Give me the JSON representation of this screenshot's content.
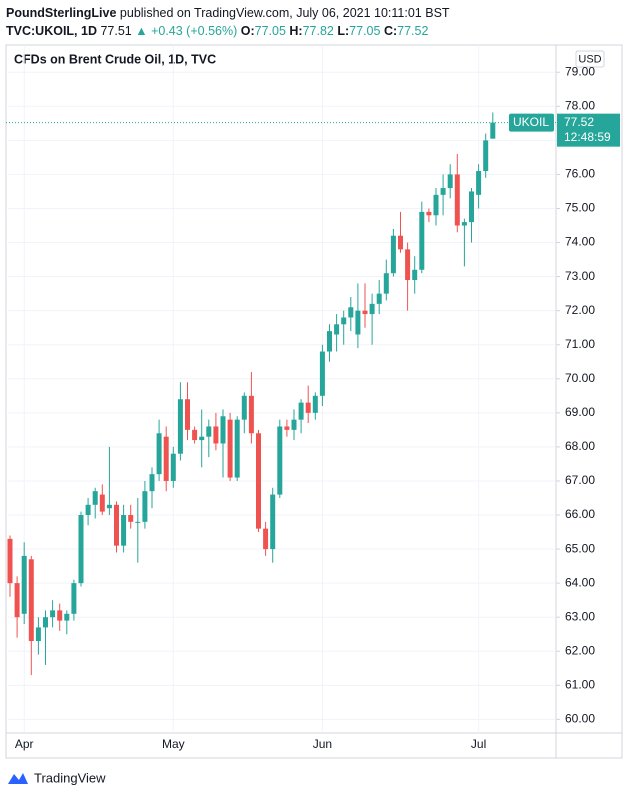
{
  "header": {
    "publisher": "PoundSterlingLive",
    "published": "published on TradingView.com, July 06, 2021 10:11:01 BST",
    "symbol": "TVC:UKOIL, 1D",
    "last": "77.51",
    "change": "▲ +0.43 (+0.56%)",
    "ohlc": [
      {
        "label": "O:",
        "value": "77.05"
      },
      {
        "label": "H:",
        "value": "77.82"
      },
      {
        "label": "L:",
        "value": "77.05"
      },
      {
        "label": "C:",
        "value": "77.52"
      }
    ]
  },
  "chart_data": {
    "type": "candlestick",
    "title": "CFDs on Brent Crude Oil, 1D, TVC",
    "currency": "USD",
    "up_color": "#26a69a",
    "down_color": "#ef5350",
    "categories": [
      null,
      null,
      "Apr",
      null,
      null,
      null,
      null,
      null,
      null,
      null,
      null,
      null,
      null,
      null,
      null,
      null,
      null,
      null,
      null,
      null,
      null,
      null,
      null,
      "May",
      null,
      null,
      null,
      null,
      null,
      null,
      null,
      null,
      null,
      null,
      null,
      null,
      null,
      null,
      null,
      null,
      null,
      null,
      null,
      null,
      "Jun",
      null,
      null,
      null,
      null,
      null,
      null,
      null,
      null,
      null,
      null,
      null,
      null,
      null,
      null,
      null,
      null,
      null,
      null,
      null,
      null,
      null,
      "Jul",
      null,
      null
    ],
    "open": [
      65.3,
      64.0,
      63.1,
      64.7,
      62.3,
      62.7,
      63.0,
      63.2,
      62.9,
      63.1,
      64.0,
      66.0,
      66.3,
      66.6,
      66.2,
      66.3,
      65.1,
      66.0,
      65.8,
      65.8,
      66.7,
      67.2,
      68.3,
      67.0,
      67.8,
      69.4,
      68.5,
      68.2,
      68.3,
      68.6,
      68.1,
      68.8,
      67.1,
      68.8,
      69.5,
      68.4,
      65.6,
      65.0,
      66.6,
      68.6,
      68.5,
      68.8,
      69.3,
      69.0,
      69.5,
      70.8,
      71.3,
      71.6,
      71.8,
      71.3,
      72.0,
      71.9,
      72.2,
      72.5,
      73.1,
      74.2,
      73.8,
      72.9,
      73.2,
      74.9,
      74.8,
      75.4,
      75.6,
      76.0,
      74.5,
      74.6,
      75.4,
      76.1,
      77.05
    ],
    "high": [
      65.4,
      64.2,
      65.2,
      64.8,
      63.0,
      63.2,
      63.5,
      63.4,
      63.2,
      64.1,
      66.1,
      66.5,
      66.8,
      66.9,
      68.0,
      66.4,
      66.3,
      66.3,
      66.5,
      67.0,
      67.4,
      68.8,
      68.6,
      68.0,
      69.9,
      69.9,
      68.6,
      69.1,
      68.8,
      69.0,
      69.1,
      69.0,
      68.9,
      69.6,
      70.2,
      68.5,
      65.8,
      66.8,
      68.8,
      68.8,
      69.1,
      69.4,
      69.8,
      69.6,
      71.0,
      71.6,
      71.9,
      72.0,
      72.4,
      72.8,
      72.8,
      72.5,
      72.9,
      73.5,
      74.4,
      74.9,
      74.0,
      73.6,
      75.2,
      75.0,
      75.6,
      76.0,
      76.3,
      76.6,
      74.7,
      75.6,
      76.3,
      77.2,
      77.82
    ],
    "low": [
      63.6,
      62.4,
      62.8,
      61.3,
      61.9,
      61.6,
      62.7,
      62.6,
      62.5,
      62.9,
      63.9,
      65.7,
      65.9,
      66.0,
      66.0,
      64.9,
      64.9,
      65.6,
      64.6,
      65.6,
      66.2,
      67.0,
      66.7,
      66.8,
      67.6,
      68.2,
      68.1,
      67.4,
      67.7,
      67.9,
      67.1,
      67.0,
      67.0,
      68.4,
      68.1,
      65.5,
      64.8,
      64.6,
      66.5,
      68.3,
      68.2,
      68.4,
      68.7,
      68.8,
      69.2,
      70.5,
      70.8,
      71.0,
      71.4,
      70.9,
      71.5,
      71.0,
      71.9,
      72.3,
      73.0,
      73.7,
      72.0,
      72.5,
      73.1,
      74.6,
      74.5,
      74.8,
      75.3,
      74.3,
      73.3,
      74.0,
      75.0,
      75.9,
      77.05
    ],
    "close": [
      64.0,
      63.0,
      64.8,
      62.3,
      62.7,
      63.0,
      63.2,
      62.9,
      63.1,
      64.0,
      66.0,
      66.3,
      66.7,
      66.1,
      66.3,
      65.1,
      66.0,
      65.8,
      65.8,
      66.7,
      67.2,
      68.4,
      67.0,
      67.8,
      69.4,
      68.5,
      68.2,
      68.3,
      68.6,
      68.1,
      68.9,
      67.1,
      68.8,
      69.5,
      68.4,
      65.6,
      65.0,
      66.6,
      68.6,
      68.5,
      68.8,
      69.3,
      69.0,
      69.5,
      70.8,
      71.4,
      71.6,
      71.8,
      72.1,
      72.0,
      71.9,
      72.2,
      72.5,
      73.1,
      74.2,
      73.8,
      72.9,
      73.2,
      74.9,
      74.8,
      75.4,
      75.6,
      76.0,
      74.5,
      74.6,
      75.5,
      76.1,
      77.0,
      77.52
    ],
    "ylim": [
      59.6,
      79.8
    ],
    "yticks": [
      {
        "value": 60,
        "label": "60.00"
      },
      {
        "value": 61,
        "label": "61.00"
      },
      {
        "value": 62,
        "label": "62.00"
      },
      {
        "value": 63,
        "label": "63.00"
      },
      {
        "value": 64,
        "label": "64.00"
      },
      {
        "value": 65,
        "label": "65.00"
      },
      {
        "value": 66,
        "label": "66.00"
      },
      {
        "value": 67,
        "label": "67.00"
      },
      {
        "value": 68,
        "label": "68.00"
      },
      {
        "value": 69,
        "label": "69.00"
      },
      {
        "value": 70,
        "label": "70.00"
      },
      {
        "value": 71,
        "label": "71.00"
      },
      {
        "value": 72,
        "label": "72.00"
      },
      {
        "value": 73,
        "label": "73.00"
      },
      {
        "value": 74,
        "label": "74.00"
      },
      {
        "value": 75,
        "label": "75.00"
      },
      {
        "value": 76,
        "label": "76.00"
      },
      {
        "value": 77,
        "label": "77.00"
      },
      {
        "value": 78,
        "label": "78.00"
      },
      {
        "value": 79,
        "label": "79.00"
      }
    ],
    "last_price": {
      "symbol": "UKOIL",
      "value": 77.52,
      "countdown": "12:48:59"
    }
  },
  "footer": {
    "brand": "TradingView"
  }
}
